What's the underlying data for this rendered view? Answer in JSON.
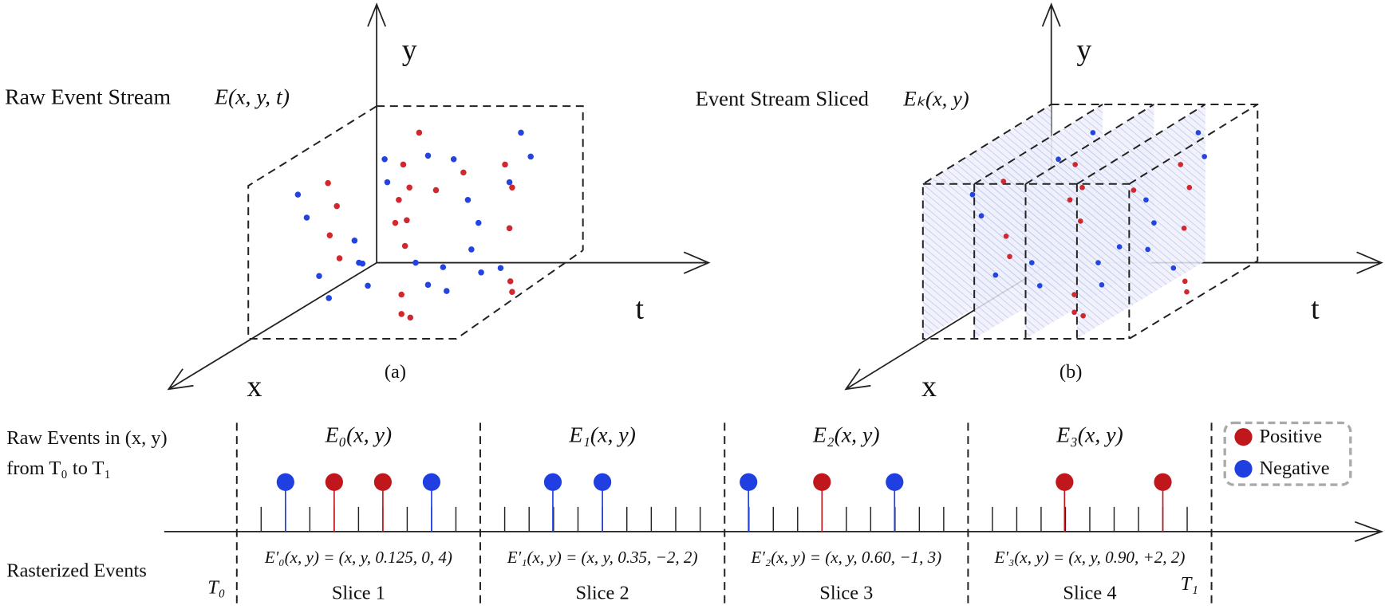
{
  "panel_a": {
    "title": "Raw Event Stream",
    "formula": "E(x, y, t)",
    "axis_y": "y",
    "axis_t": "t",
    "axis_x": "x",
    "caption": "(a)"
  },
  "panel_b": {
    "title": "Event Stream Sliced",
    "formula": "Eₖ(x, y)",
    "axis_y": "y",
    "axis_t": "t",
    "axis_x": "x",
    "caption": "(b)"
  },
  "timeline": {
    "row_label_1": "Raw Events in (x, y)",
    "row_label_2": "from T₀  to T₁",
    "rasterized_label": "Rasterized Events",
    "start": "T₀",
    "end": "T₁",
    "slices": [
      {
        "name": "E₀(x, y)",
        "formula": "E′₀(x, y) = (x, y, 0.125, 0, 4)",
        "label": "Slice 1"
      },
      {
        "name": "E₁(x, y)",
        "formula": "E′₁(x, y) = (x, y, 0.35, −2, 2)",
        "label": "Slice 2"
      },
      {
        "name": "E₂(x, y)",
        "formula": "E′₂(x, y) = (x, y, 0.60, −1, 3)",
        "label": "Slice 3"
      },
      {
        "name": "E₃(x, y)",
        "formula": "E′₃(x, y) = (x, y, 0.90, +2, 2)",
        "label": "Slice 4"
      }
    ]
  },
  "legend": {
    "positive": "Positive",
    "negative": "Negative"
  }
}
